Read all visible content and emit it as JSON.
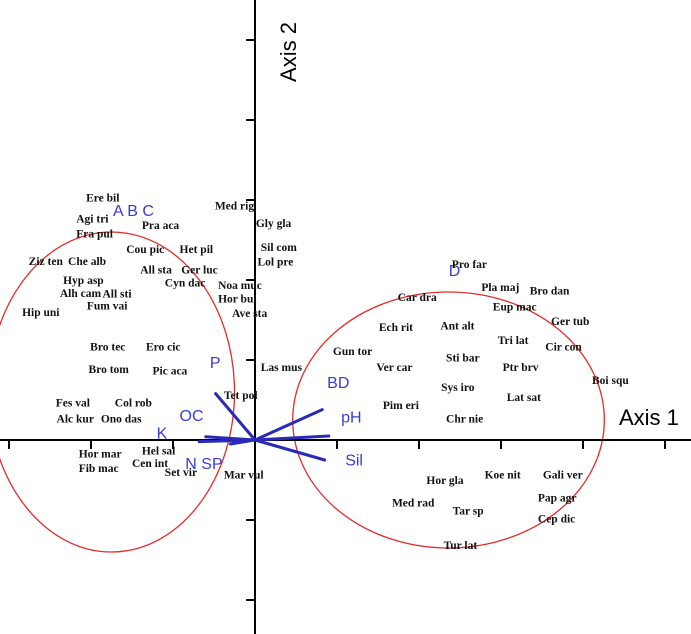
{
  "chart_data": {
    "type": "scatter",
    "title": "",
    "xlabel": "Axis 1",
    "ylabel": "Axis 2",
    "xlim": [
      -3.1,
      5.2
    ],
    "ylim": [
      -2.3,
      5.3
    ],
    "grid": false,
    "groups": [
      {
        "name": "A B C",
        "cx": -1.75,
        "cy": 0.6,
        "rx": 1.5,
        "ry": 2.0
      },
      {
        "name": "D",
        "cx": 2.36,
        "cy": 0.25,
        "rx": 1.9,
        "ry": 1.6
      }
    ],
    "species": [
      {
        "label": "Ere bil",
        "x": -2.06,
        "y": 2.98
      },
      {
        "label": "Med rig",
        "x": -0.49,
        "y": 2.88
      },
      {
        "label": "Agi tri",
        "x": -2.18,
        "y": 2.72
      },
      {
        "label": "Gly gla",
        "x": 0.01,
        "y": 2.66
      },
      {
        "label": "Pra aca",
        "x": -1.38,
        "y": 2.64
      },
      {
        "label": "Fra pul",
        "x": -2.18,
        "y": 2.53
      },
      {
        "label": "Sil com",
        "x": 0.07,
        "y": 2.36
      },
      {
        "label": "Cou pic",
        "x": -1.57,
        "y": 2.34
      },
      {
        "label": "Het pil",
        "x": -0.92,
        "y": 2.34
      },
      {
        "label": "Ziz ten",
        "x": -2.76,
        "y": 2.19
      },
      {
        "label": "Che alb",
        "x": -2.28,
        "y": 2.19
      },
      {
        "label": "Lol pre",
        "x": 0.03,
        "y": 2.18
      },
      {
        "label": "All sta",
        "x": -1.4,
        "y": 2.08
      },
      {
        "label": "Ger luc",
        "x": -0.9,
        "y": 2.08
      },
      {
        "label": "Hyp asp",
        "x": -2.34,
        "y": 1.95
      },
      {
        "label": "Cyn dac",
        "x": -1.1,
        "y": 1.92
      },
      {
        "label": "Noa muc",
        "x": -0.45,
        "y": 1.89
      },
      {
        "label": "Alh cam",
        "x": -2.38,
        "y": 1.79
      },
      {
        "label": "All sti",
        "x": -1.86,
        "y": 1.78
      },
      {
        "label": "Hor bul",
        "x": -0.45,
        "y": 1.72
      },
      {
        "label": "Fum vai",
        "x": -2.05,
        "y": 1.63
      },
      {
        "label": "Hip uni",
        "x": -2.84,
        "y": 1.55
      },
      {
        "label": "Ave sta",
        "x": -0.28,
        "y": 1.54
      },
      {
        "label": "Bro tec",
        "x": -2.01,
        "y": 1.12
      },
      {
        "label": "Ero cic",
        "x": -1.33,
        "y": 1.12
      },
      {
        "label": "Las mus",
        "x": 0.07,
        "y": 0.86
      },
      {
        "label": "Bro tom",
        "x": -2.03,
        "y": 0.84
      },
      {
        "label": "Pic aca",
        "x": -1.25,
        "y": 0.82
      },
      {
        "label": "Tet pol",
        "x": -0.38,
        "y": 0.51
      },
      {
        "label": "Fes val",
        "x": -2.43,
        "y": 0.42
      },
      {
        "label": "Col rob",
        "x": -1.71,
        "y": 0.42
      },
      {
        "label": "Alc kur",
        "x": -2.42,
        "y": 0.22
      },
      {
        "label": "Ono das",
        "x": -1.88,
        "y": 0.22
      },
      {
        "label": "Hor mar",
        "x": -2.15,
        "y": -0.22
      },
      {
        "label": "Hel sal",
        "x": -1.38,
        "y": -0.18
      },
      {
        "label": "Cen int",
        "x": -1.5,
        "y": -0.34
      },
      {
        "label": "Fib mac",
        "x": -2.15,
        "y": -0.4
      },
      {
        "label": "Set vir",
        "x": -1.1,
        "y": -0.45
      },
      {
        "label": "Mar vul",
        "x": -0.38,
        "y": -0.48
      },
      {
        "label": "Pro far",
        "x": 2.4,
        "y": 2.15
      },
      {
        "label": "Pla maj",
        "x": 2.76,
        "y": 1.86
      },
      {
        "label": "Bro dan",
        "x": 3.35,
        "y": 1.82
      },
      {
        "label": "Car dra",
        "x": 1.74,
        "y": 1.74
      },
      {
        "label": "Eup mac",
        "x": 2.9,
        "y": 1.62
      },
      {
        "label": "Ger tub",
        "x": 3.61,
        "y": 1.44
      },
      {
        "label": "Ech rit",
        "x": 1.51,
        "y": 1.36
      },
      {
        "label": "Ant alt",
        "x": 2.26,
        "y": 1.38
      },
      {
        "label": "Tri lat",
        "x": 2.96,
        "y": 1.2
      },
      {
        "label": "Cir con",
        "x": 3.54,
        "y": 1.12
      },
      {
        "label": "Gun tor",
        "x": 0.95,
        "y": 1.06
      },
      {
        "label": "Sti bar",
        "x": 2.33,
        "y": 0.98
      },
      {
        "label": "Ver car",
        "x": 1.48,
        "y": 0.86
      },
      {
        "label": "Ptr brv",
        "x": 3.02,
        "y": 0.86
      },
      {
        "label": "Boi squ",
        "x": 4.11,
        "y": 0.7
      },
      {
        "label": "Sys iro",
        "x": 2.27,
        "y": 0.61
      },
      {
        "label": "Lat sat",
        "x": 3.07,
        "y": 0.49
      },
      {
        "label": "Pim eri",
        "x": 1.56,
        "y": 0.39
      },
      {
        "label": "Chr nie",
        "x": 2.33,
        "y": 0.22
      },
      {
        "label": "Koe nit",
        "x": 2.8,
        "y": -0.48
      },
      {
        "label": "Gali ver",
        "x": 3.51,
        "y": -0.48
      },
      {
        "label": "Hor gla",
        "x": 2.09,
        "y": -0.55
      },
      {
        "label": "Pap agr",
        "x": 3.45,
        "y": -0.77
      },
      {
        "label": "Med rad",
        "x": 1.67,
        "y": -0.83
      },
      {
        "label": "Tar sp",
        "x": 2.41,
        "y": -0.93
      },
      {
        "label": "Cep dic",
        "x": 3.45,
        "y": -1.03
      },
      {
        "label": "Tur lat",
        "x": 2.3,
        "y": -1.36
      }
    ],
    "vectors": [
      {
        "name": "P",
        "x": -0.48,
        "y": 0.58,
        "lx": -0.55,
        "ly": 0.9
      },
      {
        "name": "BD",
        "x": 0.82,
        "y": 0.38,
        "lx": 0.88,
        "ly": 0.65
      },
      {
        "name": "pH",
        "x": 0.9,
        "y": 0.05,
        "lx": 1.05,
        "ly": 0.22
      },
      {
        "name": "Sil",
        "x": 0.85,
        "y": -0.25,
        "lx": 1.1,
        "ly": -0.32
      },
      {
        "name": "OC",
        "x": -0.6,
        "y": 0.04,
        "lx": -0.92,
        "ly": 0.24
      },
      {
        "name": "K",
        "x": -0.68,
        "y": -0.02,
        "lx": -1.2,
        "ly": 0.02
      },
      {
        "name": "N SP",
        "x": -0.3,
        "y": -0.05,
        "lx": -0.85,
        "ly": -0.36
      }
    ]
  }
}
